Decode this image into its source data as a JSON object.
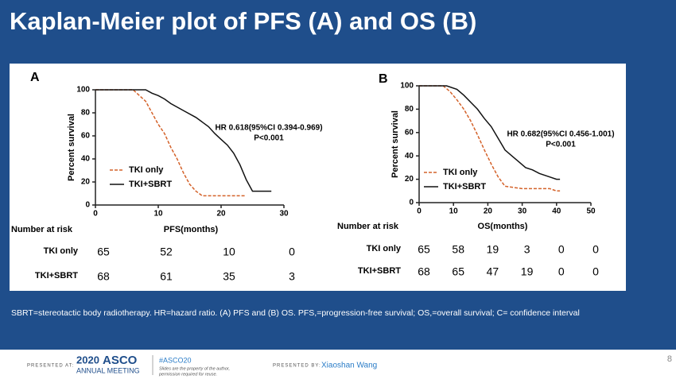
{
  "slide": {
    "title": "Kaplan-Meier plot of PFS (A) and OS (B)",
    "footnote": "SBRT=stereotactic body radiotherapy. HR=hazard ratio. (A) PFS and (B) OS. PFS,=progression-free survival; OS,=overall survival; C= confidence interval",
    "page_number": "8",
    "presented_at": "PRESENTED AT:",
    "meeting_year": "2020",
    "meeting_name": "ASCO",
    "meeting_subtitle": "ANNUAL MEETING",
    "hashtag": "#ASCO20",
    "rights_note_1": "Slides are the property of the author,",
    "rights_note_2": "permission required for reuse.",
    "presented_by": "PRESENTED BY:",
    "presenter": "Xiaoshan Wang"
  },
  "chart_data": [
    {
      "type": "line",
      "panel_label": "A",
      "y_label": "Percent survival",
      "x_label": "PFS(months)",
      "xlim": [
        0,
        30
      ],
      "xticks": [
        0,
        10,
        20,
        30
      ],
      "ylim": [
        0,
        100
      ],
      "yticks": [
        0,
        20,
        40,
        60,
        80,
        100
      ],
      "annotations": [
        "HR 0.618(95%CI 0.394-0.969)",
        "P<0.001"
      ],
      "series": [
        {
          "name": "TKI only",
          "color": "#d4622a",
          "dashed": true,
          "x": [
            0,
            6,
            7,
            8,
            9,
            10,
            11,
            12,
            13,
            14,
            15,
            16,
            17,
            20,
            24
          ],
          "values": [
            100,
            100,
            95,
            90,
            80,
            70,
            62,
            50,
            40,
            28,
            18,
            12,
            8,
            8,
            8
          ]
        },
        {
          "name": "TKI+SBRT",
          "color": "#111111",
          "dashed": false,
          "x": [
            0,
            8,
            9,
            10,
            11,
            12,
            14,
            16,
            18,
            19,
            20,
            21,
            22,
            23,
            24,
            25,
            28
          ],
          "values": [
            100,
            100,
            97,
            95,
            92,
            88,
            82,
            76,
            68,
            62,
            57,
            52,
            45,
            35,
            22,
            12,
            12
          ]
        }
      ],
      "risk_table": {
        "title": "Number at risk",
        "rows": [
          {
            "label": "TKI only",
            "counts": [
              65,
              52,
              10,
              0
            ]
          },
          {
            "label": "TKI+SBRT",
            "counts": [
              68,
              61,
              35,
              3
            ]
          }
        ]
      }
    },
    {
      "type": "line",
      "panel_label": "B",
      "y_label": "Percent survival",
      "x_label": "OS(months)",
      "xlim": [
        0,
        50
      ],
      "xticks": [
        0,
        10,
        20,
        30,
        40,
        50
      ],
      "ylim": [
        0,
        100
      ],
      "yticks": [
        0,
        20,
        40,
        60,
        80,
        100
      ],
      "annotations": [
        "HR 0.682(95%CI 0.456-1.001)",
        "P<0.001"
      ],
      "series": [
        {
          "name": "TKI only",
          "color": "#d4622a",
          "dashed": true,
          "x": [
            0,
            7,
            9,
            11,
            13,
            15,
            17,
            19,
            21,
            23,
            25,
            30,
            38,
            40,
            41
          ],
          "values": [
            100,
            100,
            95,
            88,
            80,
            70,
            58,
            45,
            33,
            22,
            14,
            12,
            12,
            10,
            10
          ]
        },
        {
          "name": "TKI+SBRT",
          "color": "#111111",
          "dashed": false,
          "x": [
            0,
            8,
            11,
            13,
            15,
            17,
            19,
            21,
            23,
            25,
            27,
            29,
            31,
            33,
            35,
            38,
            40,
            41
          ],
          "values": [
            100,
            100,
            97,
            92,
            86,
            80,
            72,
            65,
            55,
            45,
            40,
            35,
            30,
            28,
            25,
            22,
            20,
            20
          ]
        }
      ],
      "risk_table": {
        "title": "Number at risk",
        "rows": [
          {
            "label": "TKI only",
            "counts": [
              65,
              58,
              19,
              3,
              0,
              0
            ]
          },
          {
            "label": "TKI+SBRT",
            "counts": [
              68,
              65,
              47,
              19,
              0,
              0
            ]
          }
        ]
      }
    }
  ]
}
